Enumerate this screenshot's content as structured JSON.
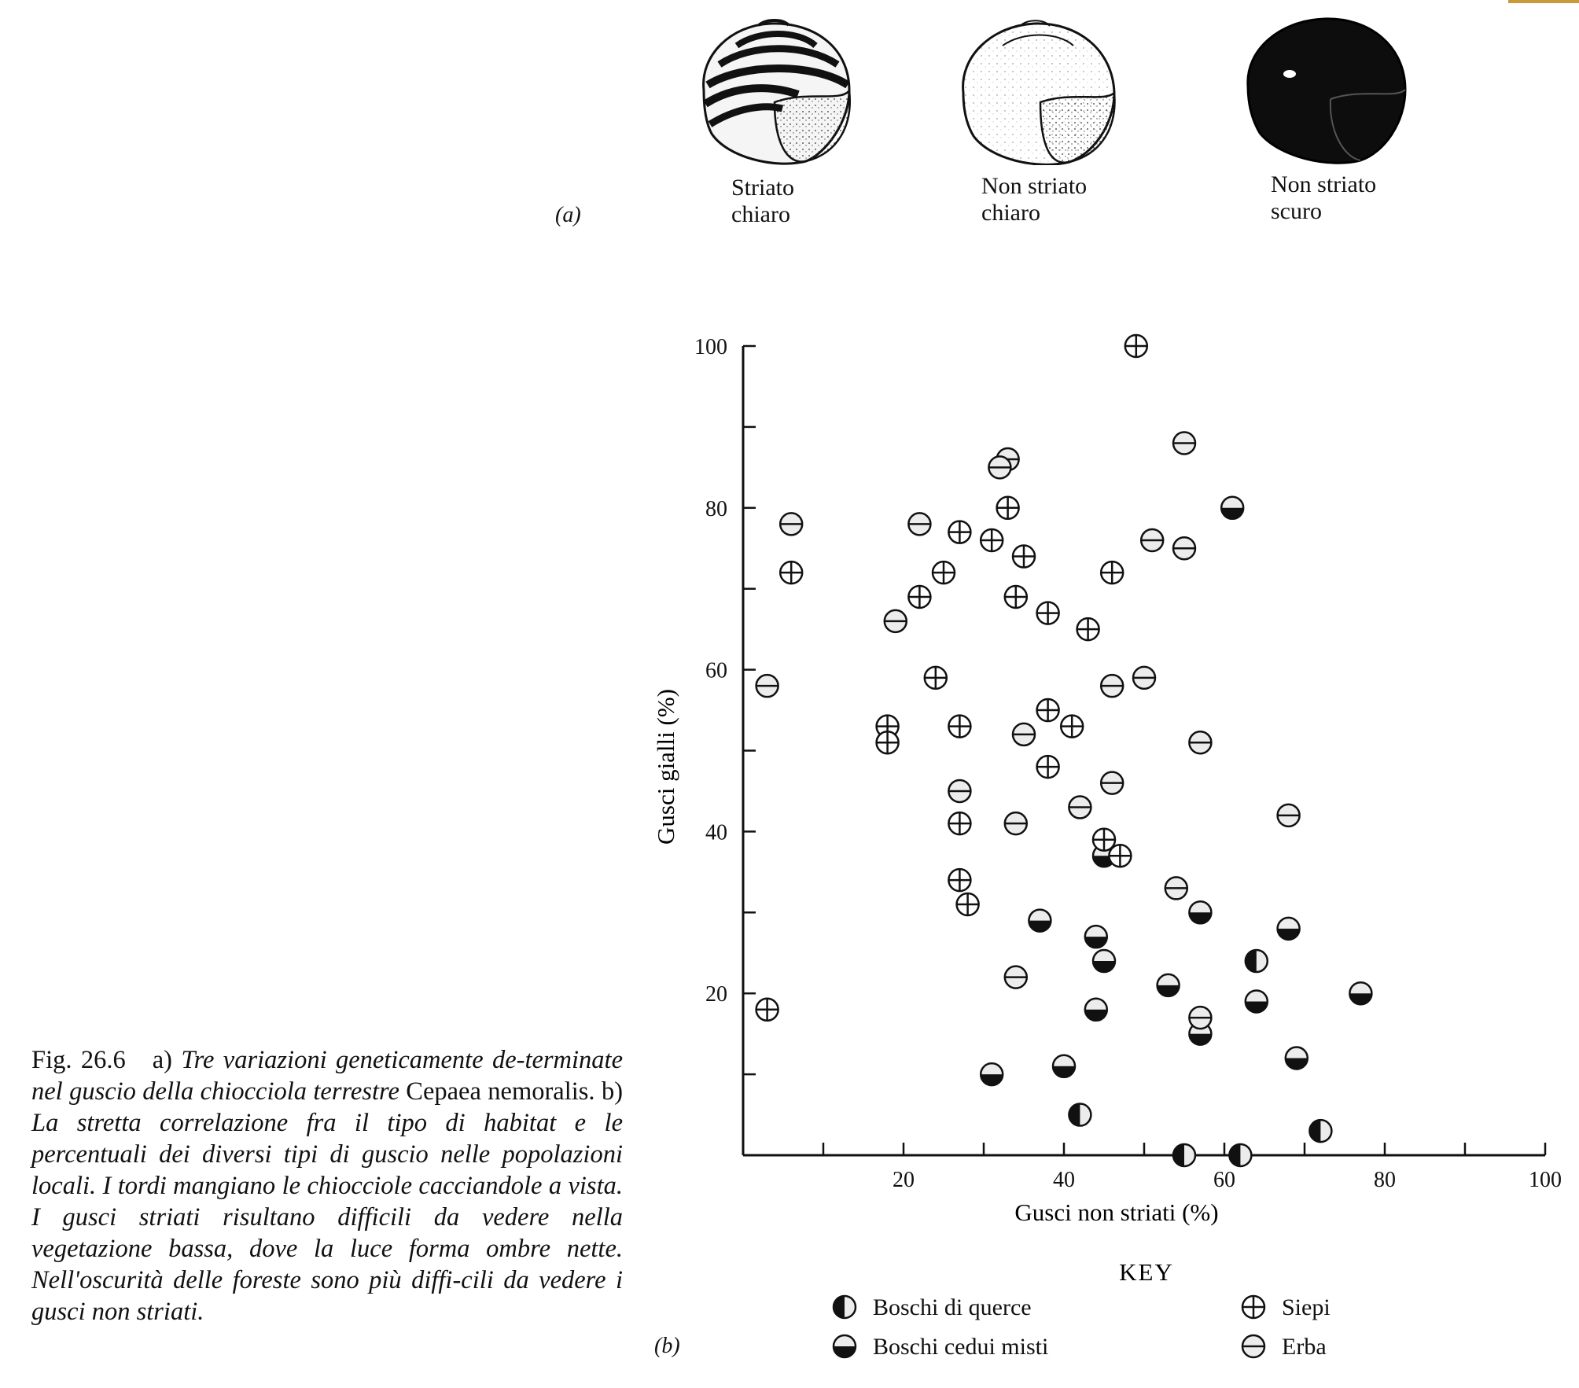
{
  "panel_a": {
    "letter": "(a)",
    "snails": [
      {
        "label": "Striato\nchiaro",
        "type": "banded"
      },
      {
        "label": "Non striato\nchiaro",
        "type": "light"
      },
      {
        "label": "Non striato\nscuro",
        "type": "dark"
      }
    ]
  },
  "panel_b": {
    "letter": "(b)"
  },
  "caption": {
    "figno": "Fig. 26.6",
    "part_a_label": "a)",
    "part_a_italic": "Tre variazioni geneticamente de-terminate nel guscio della chiocciola terrestre",
    "species": "Cepaea nemoralis.",
    "part_b_label": "b)",
    "part_b_italic": "La stretta correlazione fra il tipo di habitat e le percentuali dei diversi tipi di guscio nelle popolazioni locali. I tordi mangiano le chiocciole cacciandole a vista. I gusci striati risultano difficili da vedere nella vegetazione bassa, dove la luce forma ombre nette. Nell'oscurità delle foreste sono più diffi-cili da vedere i gusci non striati."
  },
  "chart_data": {
    "type": "scatter",
    "xlabel": "Gusci non striati (%)",
    "ylabel": "Gusci gialli (%)",
    "xlim": [
      0,
      100
    ],
    "ylim": [
      0,
      100
    ],
    "x_ticks": [
      20,
      40,
      60,
      80,
      100
    ],
    "y_ticks": [
      20,
      40,
      60,
      80,
      100
    ],
    "legend_title": "KEY",
    "legend_position": "bottom",
    "series": [
      {
        "name": "Boschi di querce",
        "marker": "half-left",
        "points": [
          [
            42,
            5
          ],
          [
            55,
            0
          ],
          [
            62,
            0
          ],
          [
            64,
            24
          ],
          [
            72,
            3
          ]
        ]
      },
      {
        "name": "Boschi cedui misti",
        "marker": "half-bottom",
        "points": [
          [
            61,
            80
          ],
          [
            45,
            37
          ],
          [
            37,
            29
          ],
          [
            44,
            27
          ],
          [
            45,
            24
          ],
          [
            44,
            18
          ],
          [
            53,
            21
          ],
          [
            57,
            30
          ],
          [
            57,
            15
          ],
          [
            64,
            19
          ],
          [
            68,
            28
          ],
          [
            69,
            12
          ],
          [
            77,
            20
          ],
          [
            31,
            10
          ],
          [
            40,
            11
          ]
        ]
      },
      {
        "name": "Siepi",
        "marker": "plus",
        "points": [
          [
            49,
            100
          ],
          [
            33,
            80
          ],
          [
            27,
            77
          ],
          [
            31,
            76
          ],
          [
            35,
            74
          ],
          [
            46,
            72
          ],
          [
            25,
            72
          ],
          [
            22,
            69
          ],
          [
            34,
            69
          ],
          [
            38,
            67
          ],
          [
            43,
            65
          ],
          [
            24,
            59
          ],
          [
            18,
            53
          ],
          [
            18,
            51
          ],
          [
            27,
            53
          ],
          [
            38,
            55
          ],
          [
            41,
            53
          ],
          [
            38,
            48
          ],
          [
            45,
            39
          ],
          [
            47,
            37
          ],
          [
            27,
            41
          ],
          [
            27,
            34
          ],
          [
            28,
            31
          ],
          [
            6,
            72
          ],
          [
            3,
            18
          ]
        ]
      },
      {
        "name": "Erba",
        "marker": "minus",
        "points": [
          [
            33,
            86
          ],
          [
            32,
            85
          ],
          [
            55,
            88
          ],
          [
            6,
            78
          ],
          [
            22,
            78
          ],
          [
            51,
            76
          ],
          [
            55,
            75
          ],
          [
            19,
            66
          ],
          [
            3,
            58
          ],
          [
            46,
            58
          ],
          [
            50,
            59
          ],
          [
            35,
            52
          ],
          [
            57,
            51
          ],
          [
            27,
            45
          ],
          [
            42,
            43
          ],
          [
            46,
            46
          ],
          [
            34,
            41
          ],
          [
            68,
            42
          ],
          [
            54,
            33
          ],
          [
            34,
            22
          ],
          [
            57,
            17
          ]
        ]
      }
    ]
  },
  "colors": {
    "ink": "#111111",
    "light_fill": "#ececec",
    "accent_rule": "#c89a3a"
  }
}
